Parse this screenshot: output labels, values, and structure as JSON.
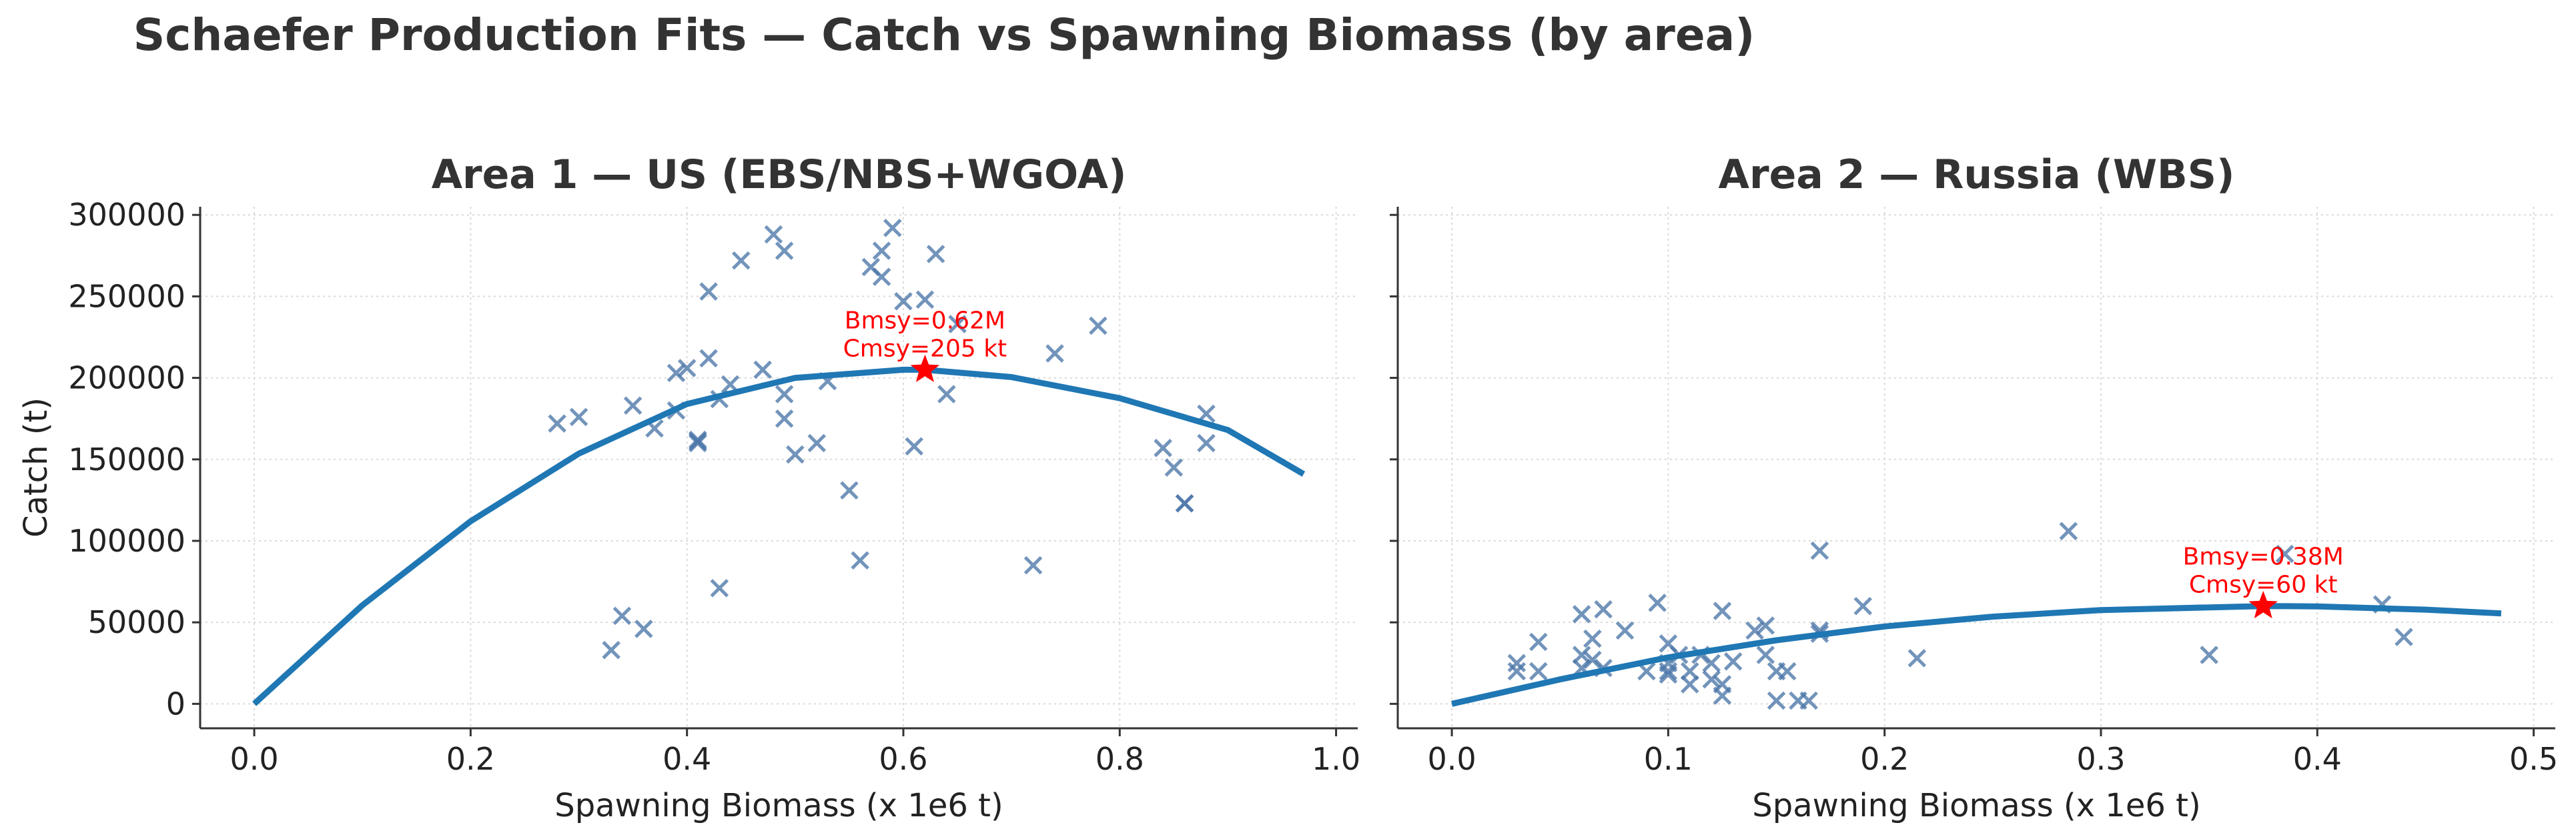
{
  "figure": {
    "title": "Schaefer Production Fits — Catch vs Spawning Biomass (by area)"
  },
  "colors": {
    "curve": "#1f77b4",
    "points": "#4a76a8",
    "msy": "#ff0000",
    "grid": "#d9d9d9",
    "text": "#333333"
  },
  "chart_data": [
    {
      "type": "scatter",
      "title": "Area 1 — US (EBS/NBS+WGOA)",
      "xlabel": "Spawning Biomass (x 1e6 t)",
      "ylabel": "Catch (t)",
      "xlim": [
        -0.05,
        1.02
      ],
      "ylim": [
        -15000,
        305000
      ],
      "xticks": [
        0.0,
        0.2,
        0.4,
        0.6,
        0.8,
        1.0
      ],
      "xtick_labels": [
        "0.0",
        "0.2",
        "0.4",
        "0.6",
        "0.8",
        "1.0"
      ],
      "yticks": [
        0,
        50000,
        100000,
        150000,
        200000,
        250000,
        300000
      ],
      "ytick_labels": [
        "0",
        "50000",
        "100000",
        "150000",
        "200000",
        "250000",
        "300000"
      ],
      "grid": true,
      "series": [
        {
          "marker": "x",
          "x": [
            0.28,
            0.3,
            0.35,
            0.37,
            0.39,
            0.39,
            0.4,
            0.41,
            0.41,
            0.42,
            0.42,
            0.43,
            0.44,
            0.45,
            0.47,
            0.48,
            0.49,
            0.49,
            0.49,
            0.5,
            0.52,
            0.53,
            0.55,
            0.56,
            0.57,
            0.58,
            0.58,
            0.59,
            0.6,
            0.61,
            0.62,
            0.63,
            0.64,
            0.65,
            0.72,
            0.74,
            0.78,
            0.84,
            0.85,
            0.86,
            0.86,
            0.88,
            0.88,
            0.33,
            0.34,
            0.36,
            0.43,
            0.41
          ],
          "y": [
            172000,
            176000,
            183000,
            169000,
            180000,
            203000,
            206000,
            160000,
            162000,
            212000,
            253000,
            187000,
            196000,
            272000,
            205000,
            288000,
            278000,
            190000,
            175000,
            153000,
            160000,
            198000,
            131000,
            88000,
            268000,
            278000,
            262000,
            292000,
            247000,
            158000,
            248000,
            276000,
            190000,
            233000,
            85000,
            215000,
            232000,
            157000,
            145000,
            123000,
            123000,
            178000,
            160000,
            33000,
            54000,
            46000,
            71000,
            161000
          ]
        },
        {
          "type": "line",
          "x": [
            0.0,
            0.1,
            0.2,
            0.3,
            0.4,
            0.5,
            0.6,
            0.62,
            0.7,
            0.8,
            0.9,
            0.97
          ],
          "y": [
            0,
            60500,
            112000,
            153500,
            184000,
            200000,
            205000,
            205000,
            200500,
            187500,
            168000,
            141000
          ]
        }
      ],
      "msy_point": {
        "x": 0.62,
        "y": 205000
      },
      "annotation": [
        "Bmsy=0.62M",
        "Cmsy=205 kt"
      ]
    },
    {
      "type": "scatter",
      "title": "Area 2 — Russia (WBS)",
      "xlabel": "Spawning Biomass (x 1e6 t)",
      "ylabel": "",
      "xlim": [
        -0.025,
        0.51
      ],
      "ylim": [
        -15000,
        305000
      ],
      "xticks": [
        0.0,
        0.1,
        0.2,
        0.3,
        0.4,
        0.5
      ],
      "xtick_labels": [
        "0.0",
        "0.1",
        "0.2",
        "0.3",
        "0.4",
        "0.5"
      ],
      "yticks": [
        0,
        50000,
        100000,
        150000,
        200000,
        250000,
        300000
      ],
      "ytick_labels": [],
      "grid": true,
      "series": [
        {
          "marker": "x",
          "x": [
            0.03,
            0.03,
            0.04,
            0.04,
            0.06,
            0.06,
            0.06,
            0.065,
            0.07,
            0.07,
            0.08,
            0.09,
            0.095,
            0.1,
            0.1,
            0.1,
            0.105,
            0.11,
            0.11,
            0.115,
            0.12,
            0.12,
            0.125,
            0.125,
            0.13,
            0.14,
            0.145,
            0.145,
            0.15,
            0.15,
            0.155,
            0.16,
            0.165,
            0.17,
            0.17,
            0.17,
            0.19,
            0.215,
            0.285,
            0.35,
            0.385,
            0.43,
            0.44,
            0.125,
            0.065,
            0.1
          ],
          "y": [
            25000,
            20000,
            38000,
            20000,
            30000,
            55000,
            22000,
            40000,
            58000,
            22000,
            45000,
            20000,
            62000,
            25000,
            37000,
            18000,
            30000,
            12000,
            20000,
            30000,
            15000,
            25000,
            57000,
            5000,
            26000,
            45000,
            48000,
            30000,
            20000,
            2000,
            20000,
            2000,
            2000,
            45000,
            43000,
            94000,
            60000,
            28000,
            106000,
            30000,
            92000,
            61000,
            41000,
            12000,
            27000,
            20000
          ]
        },
        {
          "type": "line",
          "x": [
            0.0,
            0.05,
            0.1,
            0.15,
            0.2,
            0.25,
            0.3,
            0.375,
            0.4,
            0.45,
            0.485
          ],
          "y": [
            0,
            15000,
            28500,
            39000,
            47500,
            53500,
            57500,
            60000,
            59800,
            57800,
            55500
          ]
        }
      ],
      "msy_point": {
        "x": 0.375,
        "y": 60000
      },
      "annotation": [
        "Bmsy=0.38M",
        "Cmsy=60 kt"
      ]
    }
  ]
}
